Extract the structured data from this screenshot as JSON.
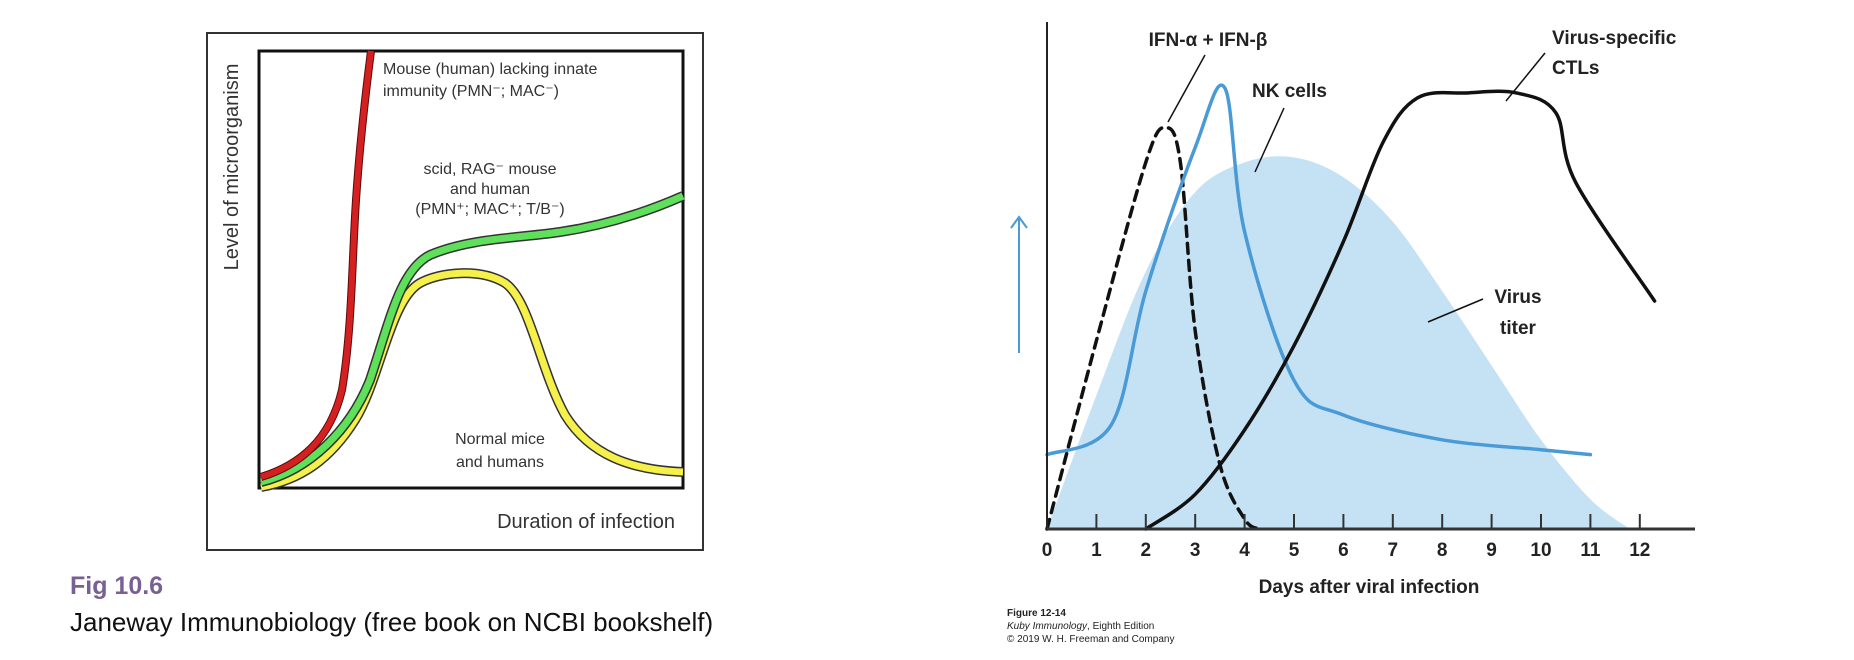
{
  "left_figure": {
    "caption_title": "Fig 10.6",
    "caption_source": "Janeway Immunobiology (free book on NCBI bookshelf)",
    "colors": {
      "title": "#7a5f95"
    }
  },
  "right_figure": {
    "credit_figure": "Figure 12-14",
    "credit_book": "Kuby Immunology",
    "credit_edition": ", Eighth Edition",
    "credit_copyright": "© 2019 W. H. Freeman and Company"
  },
  "chart_data": [
    {
      "type": "line",
      "title": "",
      "xlabel": "Duration of infection",
      "ylabel": "Level of microorganism",
      "x_ticks": [],
      "y_ticks": [],
      "grid": false,
      "legend": "inline labels",
      "x": [
        0,
        10,
        20,
        30,
        40,
        50,
        60,
        70,
        80,
        90,
        100
      ],
      "series": [
        {
          "name": "Mouse (human) lacking innate immunity (PMN⁻, MAC⁻)",
          "color": "#d42020",
          "values": [
            2,
            8,
            22,
            55,
            100,
            null,
            null,
            null,
            null,
            null,
            null
          ]
        },
        {
          "name": "scid, RAG⁻ mouse and human (PMN⁺, MAC⁺, T/B⁻)",
          "color": "#5fe05a",
          "values": [
            1,
            5,
            15,
            40,
            52,
            54,
            56,
            58,
            61,
            66,
            70
          ]
        },
        {
          "name": "Normal mice and humans",
          "color": "#f5f04a",
          "values": [
            0,
            3,
            12,
            38,
            49,
            48,
            36,
            14,
            6,
            3,
            3
          ]
        }
      ],
      "annotations": [
        "Mouse (human) lacking innate",
        "immunity (PMN⁻; MAC⁻)",
        "scid, RAG⁻ mouse",
        "and human",
        "(PMN⁺; MAC⁺; T/B⁻)",
        "Normal mice",
        "and humans"
      ]
    },
    {
      "type": "line",
      "title": "",
      "xlabel": "Days after viral infection",
      "ylabel": "",
      "y_axis_arrow": "up (blue)",
      "xlim": [
        0,
        13
      ],
      "x_ticks": [
        "0",
        "1",
        "2",
        "3",
        "4",
        "5",
        "6",
        "7",
        "8",
        "9",
        "10",
        "11",
        "12"
      ],
      "grid": false,
      "legend": "inline labels",
      "series": [
        {
          "name": "IFN-α + IFN-β",
          "style": "dashed",
          "color": "#111111",
          "points": [
            [
              0,
              0
            ],
            [
              1,
              38
            ],
            [
              2,
              74
            ],
            [
              2.4,
              81
            ],
            [
              2.7,
              74
            ],
            [
              3,
              40
            ],
            [
              3.5,
              13
            ],
            [
              4,
              2
            ],
            [
              4.3,
              0
            ]
          ]
        },
        {
          "name": "NK cells",
          "color": "#4a9ad6",
          "points": [
            [
              0,
              15
            ],
            [
              1.3,
              21
            ],
            [
              2,
              48
            ],
            [
              3,
              77
            ],
            [
              3.6,
              89
            ],
            [
              4,
              60
            ],
            [
              5,
              30
            ],
            [
              6,
              23
            ],
            [
              8,
              18
            ],
            [
              10,
              16
            ],
            [
              11,
              15
            ]
          ]
        },
        {
          "name": "Virus-specific CTLs",
          "color": "#111111",
          "points": [
            [
              2,
              0
            ],
            [
              3,
              7
            ],
            [
              4,
              20
            ],
            [
              5,
              37
            ],
            [
              6,
              58
            ],
            [
              6.8,
              78
            ],
            [
              7.5,
              87
            ],
            [
              8.5,
              88
            ],
            [
              9.5,
              88
            ],
            [
              10.3,
              84
            ],
            [
              10.7,
              70
            ],
            [
              12.3,
              46
            ]
          ]
        },
        {
          "name": "Virus titer",
          "type": "area",
          "color": "#c5e2f5",
          "points": [
            [
              0,
              0
            ],
            [
              1,
              27
            ],
            [
              2,
              52
            ],
            [
              3,
              68
            ],
            [
              4,
              74
            ],
            [
              5,
              75
            ],
            [
              6,
              71
            ],
            [
              7,
              62
            ],
            [
              8,
              48
            ],
            [
              9,
              33
            ],
            [
              10,
              18
            ],
            [
              11,
              6
            ],
            [
              11.8,
              0
            ]
          ]
        }
      ],
      "annotations": [
        "IFN-α + IFN-β",
        "NK cells",
        "Virus-specific",
        "CTLs",
        "Virus",
        "titer"
      ]
    }
  ]
}
